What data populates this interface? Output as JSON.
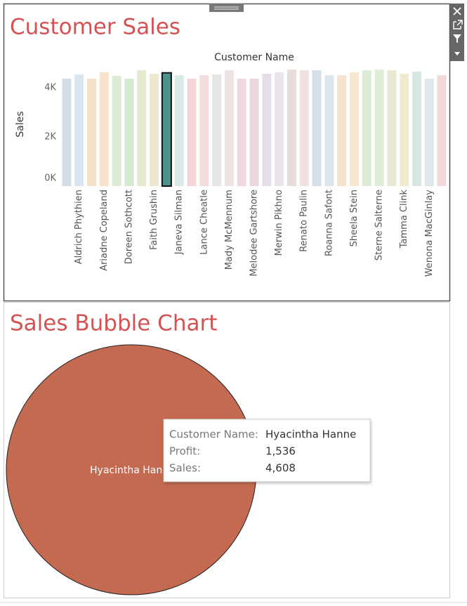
{
  "dashboard": {
    "title": "Customer Sales",
    "bubble_title": "Sales Bubble Chart"
  },
  "chart_data": [
    {
      "type": "bar",
      "title": "Customer Sales",
      "x_label": "Customer Name",
      "y_label": "Sales",
      "categories": [
        null,
        "Aldrich Phythien",
        null,
        "Ariadne Copeland",
        null,
        "Doreen Sothcott",
        null,
        "Faith Grushin",
        null,
        "Janeva Silman",
        null,
        "Lance Cheatle",
        null,
        "Mady McMennum",
        null,
        "Melodee Gartshore",
        null,
        "Merwin Pikhno",
        null,
        "Renato Paulin",
        null,
        "Roanna Safont",
        null,
        "Sheela Stein",
        null,
        "Sterne Salterne",
        null,
        "Tamma Clink",
        null,
        "Wenona MacGinlay",
        null
      ],
      "values": [
        4370,
        4540,
        4370,
        4630,
        4490,
        4370,
        4710,
        4570,
        4608,
        4510,
        4370,
        4510,
        4540,
        4710,
        4370,
        4370,
        4570,
        4630,
        4740,
        4710,
        4710,
        4510,
        4510,
        4630,
        4710,
        4740,
        4710,
        4570,
        4660,
        4370,
        4510
      ],
      "colors": [
        "#d3dde6",
        "#dbe4ee",
        "#f5e0c8",
        "#f8e3cf",
        "#dcebd3",
        "#d5ead0",
        "#e6e9d0",
        "#efe8cf",
        "#4f9089",
        "#d8e9e8",
        "#f4d6d6",
        "#f3dcdc",
        "#e6e4e4",
        "#ebe4e2",
        "#efd9de",
        "#ead6dc",
        "#e7dce9",
        "#ece2ee",
        "#e7dcd7",
        "#eee3de",
        "#d6dfe8",
        "#dde5ee",
        "#f5e2cf",
        "#f6e6d4",
        "#dcebd5",
        "#dfeed8",
        "#ebe8d2",
        "#f1eacf",
        "#d5e8e4",
        "#dde8ea",
        "#f2d9d9"
      ],
      "selected": 8,
      "ylim": [
        0,
        5000
      ],
      "yticks": [
        {
          "value": 0,
          "label": "0K"
        },
        {
          "value": 2000,
          "label": "2K"
        },
        {
          "value": 4000,
          "label": "4K"
        }
      ]
    },
    {
      "type": "bubble",
      "title": "Sales Bubble Chart",
      "color": "#c36a50",
      "names": [
        "Hyacintha Hanne"
      ],
      "profit": [
        1536
      ],
      "sales": [
        4608
      ],
      "profit_labels": [
        "1,536"
      ],
      "sales_labels": [
        "4,608"
      ],
      "tooltip": {
        "name_label": "Customer Name:",
        "profit_label": "Profit:",
        "sales_label": "Sales:"
      }
    }
  ]
}
